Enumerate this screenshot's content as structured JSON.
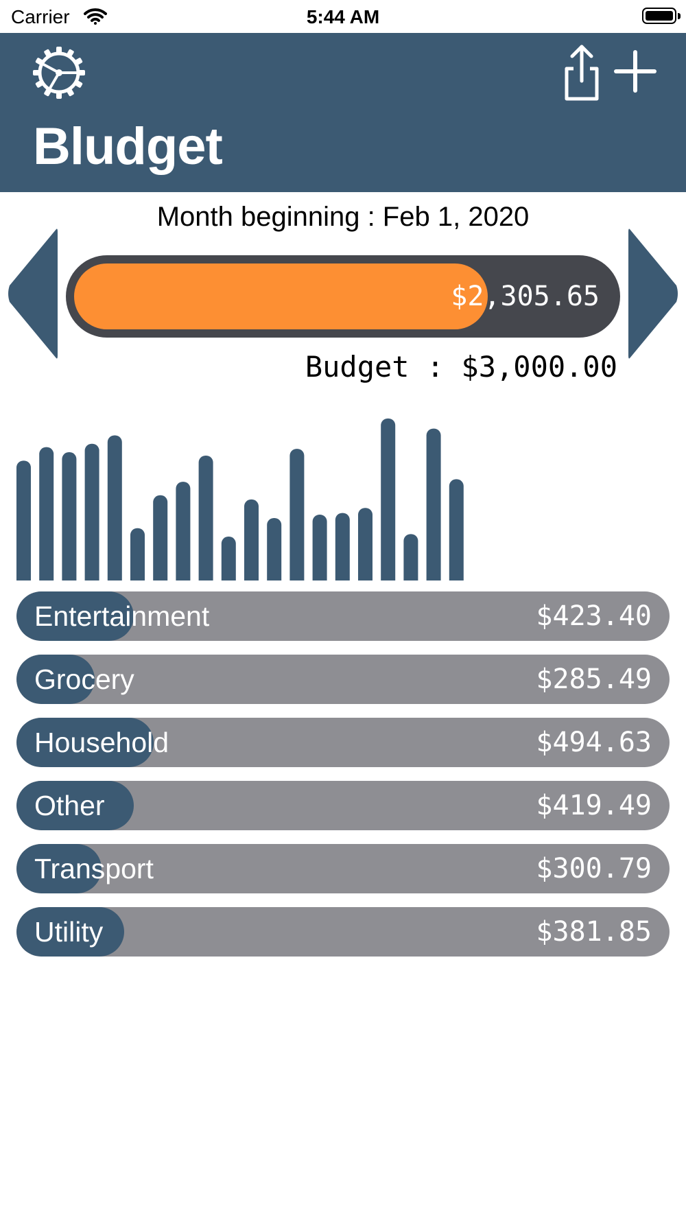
{
  "status_bar": {
    "carrier": "Carrier",
    "time": "5:44 AM",
    "icons": [
      "wifi-icon",
      "battery-icon"
    ]
  },
  "header": {
    "title": "Bludget",
    "background": "#3c5a73",
    "left_icon": "gear-icon",
    "right_icons": [
      "share-icon",
      "plus-icon"
    ]
  },
  "period": {
    "label": "Month beginning : Feb 1, 2020",
    "prev_icon": "chevron-left-icon",
    "next_icon": "chevron-right-icon"
  },
  "spending": {
    "spent_display": "$2,305.65",
    "spent": 2305.65,
    "budget": 3000.0,
    "fraction": 0.7685,
    "budget_label": "Budget : $3,000.00",
    "fill_color": "#fd8f33",
    "track_color": "#45474d"
  },
  "chart_data": {
    "type": "bar",
    "color": "#3c5a73",
    "values": [
      142,
      158,
      152,
      162,
      172,
      62,
      101,
      117,
      148,
      52,
      96,
      74,
      156,
      78,
      80,
      86,
      192,
      55,
      180,
      120
    ],
    "ylim": [
      0,
      200
    ],
    "title": "",
    "xlabel": "",
    "ylabel": ""
  },
  "categories": [
    {
      "name": "Entertainment",
      "amount": "$423.40",
      "fraction": 0.18
    },
    {
      "name": "Grocery",
      "amount": "$285.49",
      "fraction": 0.12
    },
    {
      "name": "Household",
      "amount": "$494.63",
      "fraction": 0.21
    },
    {
      "name": "Other",
      "amount": "$419.49",
      "fraction": 0.18
    },
    {
      "name": "Transport",
      "amount": "$300.79",
      "fraction": 0.13
    },
    {
      "name": "Utility",
      "amount": "$381.85",
      "fraction": 0.165
    }
  ],
  "colors": {
    "category_fill": "#3c5a73",
    "category_track": "#8e8e93"
  }
}
